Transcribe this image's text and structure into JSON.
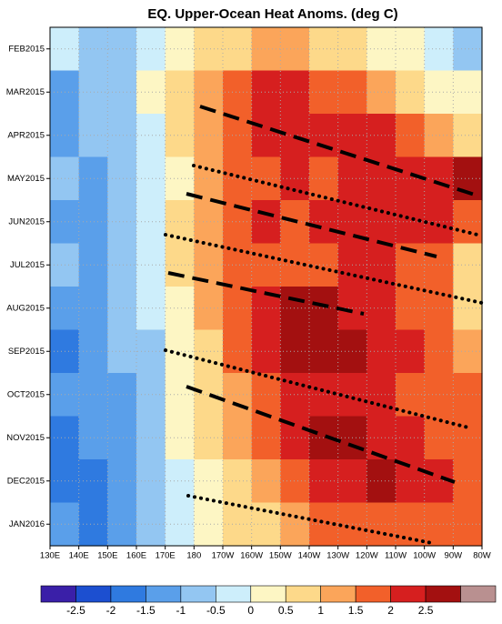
{
  "chart_data": {
    "type": "heatmap",
    "title": "EQ. Upper-Ocean Heat Anoms. (deg C)",
    "x": [
      135,
      145,
      155,
      165,
      175,
      185,
      195,
      205,
      215,
      225,
      235,
      245,
      255,
      265,
      275
    ],
    "xlim": [
      130,
      280
    ],
    "xticks": [
      {
        "value": 130,
        "label": "130E"
      },
      {
        "value": 140,
        "label": "140E"
      },
      {
        "value": 150,
        "label": "150E"
      },
      {
        "value": 160,
        "label": "160E"
      },
      {
        "value": 170,
        "label": "170E"
      },
      {
        "value": 180,
        "label": "180"
      },
      {
        "value": 190,
        "label": "170W"
      },
      {
        "value": 200,
        "label": "160W"
      },
      {
        "value": 210,
        "label": "150W"
      },
      {
        "value": 220,
        "label": "140W"
      },
      {
        "value": 230,
        "label": "130W"
      },
      {
        "value": 240,
        "label": "120W"
      },
      {
        "value": 250,
        "label": "110W"
      },
      {
        "value": 260,
        "label": "100W"
      },
      {
        "value": 270,
        "label": "90W"
      },
      {
        "value": 280,
        "label": "80W"
      }
    ],
    "categories": [
      "FEB2015",
      "MAR2015",
      "APR2015",
      "MAY2015",
      "JUN2015",
      "JUL2015",
      "AUG2015",
      "SEP2015",
      "OCT2015",
      "NOV2015",
      "DEC2015",
      "JAN2016"
    ],
    "values": [
      [
        -0.3,
        -0.8,
        -0.5,
        0,
        0.3,
        0.8,
        0.7,
        1.2,
        1.3,
        1.0,
        0.8,
        0.5,
        0.2,
        -0.3,
        -0.6
      ],
      [
        -1.0,
        -0.8,
        -0.7,
        0.2,
        0.8,
        1.4,
        1.8,
        2.1,
        2.1,
        1.8,
        1.6,
        1.4,
        1.0,
        0.5,
        0.3
      ],
      [
        -1.2,
        -0.9,
        -0.6,
        -0.2,
        0.6,
        1.2,
        1.8,
        2.2,
        2.3,
        2.1,
        2.3,
        2.2,
        1.8,
        1.5,
        1.0
      ],
      [
        -0.9,
        -1.2,
        -0.5,
        -0.3,
        0.4,
        1.1,
        1.6,
        2.0,
        2.1,
        2.0,
        2.2,
        2.1,
        2.1,
        2.4,
        2.6
      ],
      [
        -1.1,
        -1.3,
        -0.8,
        -0.4,
        0.7,
        1.5,
        1.9,
        2.1,
        2.0,
        2.1,
        2.2,
        2.2,
        2.1,
        2.2,
        1.8
      ],
      [
        -0.8,
        -1.1,
        -0.7,
        -0.2,
        0.6,
        1.3,
        1.8,
        1.9,
        2.0,
        2.0,
        2.1,
        2.1,
        1.9,
        1.7,
        1.0
      ],
      [
        -1.3,
        -1.1,
        -0.8,
        -0.3,
        0.5,
        1.2,
        1.8,
        2.2,
        2.6,
        2.7,
        2.2,
        2.1,
        2.0,
        1.6,
        0.6
      ],
      [
        -1.5,
        -1.3,
        -0.9,
        -0.5,
        0.4,
        1.0,
        1.7,
        2.1,
        2.6,
        2.8,
        2.6,
        2.2,
        2.1,
        1.8,
        1.2
      ],
      [
        -1.4,
        -1.4,
        -1.0,
        -0.5,
        0.2,
        0.8,
        1.5,
        2.0,
        2.2,
        2.1,
        2.2,
        2.1,
        2.0,
        1.9,
        1.6
      ],
      [
        -1.6,
        -1.3,
        -1.0,
        -0.7,
        0.1,
        0.6,
        1.2,
        1.7,
        2.3,
        2.7,
        2.6,
        2.4,
        2.2,
        2.0,
        1.7
      ],
      [
        -1.5,
        -1.6,
        -1.1,
        -0.8,
        0.0,
        0.5,
        0.9,
        1.4,
        1.9,
        2.2,
        2.2,
        2.6,
        2.3,
        2.2,
        2.0
      ],
      [
        -1.3,
        -1.6,
        -1.1,
        -0.8,
        -0.1,
        0.3,
        0.6,
        0.9,
        1.3,
        1.6,
        1.8,
        1.9,
        1.8,
        1.9,
        1.6
      ]
    ],
    "levels": [
      -2.5,
      -2,
      -1.5,
      -1,
      -0.5,
      0,
      0.5,
      1,
      1.5,
      2,
      2.5
    ],
    "colors": [
      "#3a1fa8",
      "#1c4fd0",
      "#2f7ae0",
      "#5a9fea",
      "#93c6f2",
      "#cdeefb",
      "#fdf6c4",
      "#fdd98a",
      "#fba55a",
      "#f2602a",
      "#d61f1f",
      "#a31010",
      "#b99090"
    ],
    "grid": true
  }
}
